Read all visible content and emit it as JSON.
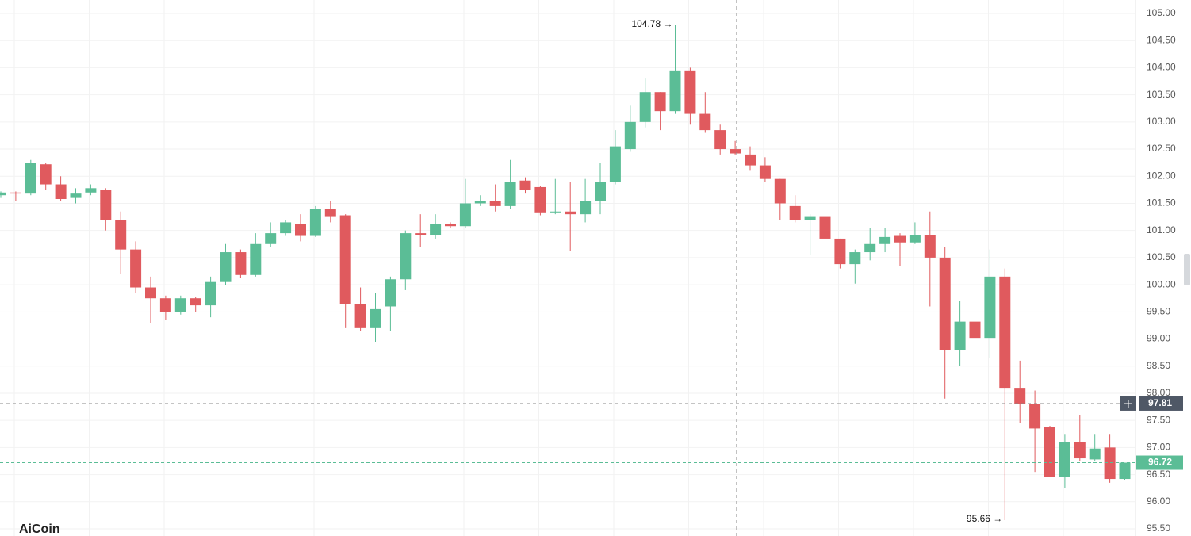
{
  "chart_data": {
    "type": "candlestick",
    "categories": [
      null,
      null,
      null,
      null,
      null,
      null,
      null,
      null,
      null,
      null,
      null,
      null,
      null,
      null,
      null,
      null,
      null,
      null,
      null,
      null,
      null,
      null,
      null,
      null,
      null,
      null,
      null,
      null,
      null,
      null,
      null,
      null,
      null,
      null,
      null,
      null,
      null,
      null,
      null,
      null,
      null,
      null,
      null,
      null,
      null,
      null,
      null,
      null,
      null,
      null,
      null,
      null,
      null,
      null,
      null,
      null,
      null,
      null,
      null,
      null,
      null,
      null,
      null,
      null,
      null,
      null,
      null,
      null,
      null,
      null,
      null,
      null,
      null,
      null,
      null,
      null
    ],
    "open": [
      101.65,
      101.7,
      101.68,
      102.22,
      101.85,
      101.6,
      101.7,
      101.75,
      101.2,
      100.65,
      99.95,
      99.75,
      99.5,
      99.75,
      99.62,
      100.05,
      100.6,
      100.18,
      100.75,
      100.95,
      101.12,
      100.9,
      101.4,
      101.28,
      99.65,
      99.2,
      99.6,
      100.1,
      100.95,
      100.92,
      101.12,
      101.08,
      101.5,
      101.55,
      101.45,
      101.92,
      101.8,
      101.32,
      101.35,
      101.3,
      101.55,
      101.9,
      102.5,
      103.0,
      103.55,
      103.2,
      103.95,
      103.15,
      102.85,
      102.5,
      102.4,
      102.2,
      101.95,
      101.45,
      101.2,
      101.25,
      100.85,
      100.38,
      100.6,
      100.75,
      100.9,
      100.78,
      100.92,
      100.5,
      98.8,
      99.32,
      99.02,
      100.15,
      98.1,
      97.8,
      97.38,
      96.45,
      97.1,
      96.78,
      97.0,
      96.42
    ],
    "high": [
      101.72,
      101.72,
      102.3,
      102.25,
      102.0,
      101.78,
      101.85,
      101.78,
      101.35,
      100.8,
      100.15,
      99.8,
      99.8,
      99.78,
      100.15,
      100.75,
      100.65,
      100.95,
      101.15,
      101.2,
      101.3,
      101.45,
      101.55,
      101.3,
      99.95,
      99.85,
      100.15,
      101.0,
      101.3,
      101.3,
      101.15,
      101.95,
      101.65,
      101.85,
      102.3,
      101.98,
      101.82,
      101.95,
      101.9,
      101.95,
      102.25,
      102.85,
      103.3,
      103.8,
      103.55,
      104.78,
      104.0,
      103.55,
      102.95,
      102.65,
      102.55,
      102.35,
      101.95,
      101.65,
      101.3,
      101.55,
      100.85,
      100.65,
      101.05,
      101.05,
      100.95,
      101.15,
      101.35,
      100.7,
      99.7,
      99.4,
      100.65,
      100.3,
      98.6,
      98.05,
      97.4,
      97.25,
      97.6,
      97.25,
      97.25,
      96.72
    ],
    "low": [
      101.6,
      101.55,
      101.65,
      101.75,
      101.55,
      101.5,
      101.65,
      101.0,
      100.2,
      99.85,
      99.3,
      99.35,
      99.45,
      99.5,
      99.4,
      100.0,
      100.12,
      100.15,
      100.7,
      100.9,
      100.8,
      100.88,
      101.15,
      99.2,
      99.15,
      98.95,
      99.15,
      99.9,
      100.7,
      100.85,
      101.05,
      101.05,
      101.45,
      101.35,
      101.4,
      101.68,
      101.28,
      101.3,
      100.62,
      101.15,
      101.3,
      101.85,
      102.45,
      102.9,
      102.85,
      103.15,
      102.95,
      102.8,
      102.4,
      102.4,
      102.1,
      101.9,
      101.2,
      101.15,
      100.55,
      100.8,
      100.3,
      100.02,
      100.45,
      100.6,
      100.35,
      100.75,
      99.6,
      97.9,
      98.5,
      98.9,
      98.65,
      95.66,
      97.45,
      96.55,
      96.45,
      96.25,
      96.75,
      96.75,
      96.35,
      96.4
    ],
    "close": [
      101.7,
      101.68,
      102.25,
      101.85,
      101.58,
      101.68,
      101.78,
      101.2,
      100.65,
      99.95,
      99.75,
      99.5,
      99.75,
      99.62,
      100.05,
      100.6,
      100.18,
      100.75,
      100.95,
      101.15,
      100.9,
      101.4,
      101.25,
      99.65,
      99.2,
      99.55,
      100.1,
      100.95,
      100.92,
      101.12,
      101.08,
      101.5,
      101.55,
      101.45,
      101.9,
      101.75,
      101.32,
      101.35,
      101.3,
      101.55,
      101.9,
      102.55,
      103.0,
      103.55,
      103.2,
      103.95,
      103.15,
      102.85,
      102.5,
      102.42,
      102.2,
      101.95,
      101.5,
      101.2,
      101.25,
      100.85,
      100.38,
      100.6,
      100.75,
      100.88,
      100.78,
      100.92,
      100.5,
      98.8,
      99.32,
      99.02,
      100.15,
      98.1,
      97.8,
      97.35,
      96.45,
      97.1,
      96.8,
      96.98,
      96.42,
      96.72
    ],
    "up_color": "#5bbd96",
    "down_color": "#e05a5e",
    "ylim": [
      95.5,
      105.0
    ],
    "yticks": [
      {
        "value": 95.5,
        "label": "95.50"
      },
      {
        "value": 96,
        "label": "96.00"
      },
      {
        "value": 96.5,
        "label": "96.50"
      },
      {
        "value": 97,
        "label": "97.00"
      },
      {
        "value": 97.5,
        "label": "97.50"
      },
      {
        "value": 98,
        "label": "98.00"
      },
      {
        "value": 98.5,
        "label": "98.50"
      },
      {
        "value": 99,
        "label": "99.00"
      },
      {
        "value": 99.5,
        "label": "99.50"
      },
      {
        "value": 100,
        "label": "100.00"
      },
      {
        "value": 100.5,
        "label": "100.50"
      },
      {
        "value": 101,
        "label": "101.00"
      },
      {
        "value": 101.5,
        "label": "101.50"
      },
      {
        "value": 102,
        "label": "102.00"
      },
      {
        "value": 102.5,
        "label": "102.50"
      },
      {
        "value": 103,
        "label": "103.00"
      },
      {
        "value": 103.5,
        "label": "103.50"
      },
      {
        "value": 104,
        "label": "104.00"
      },
      {
        "value": 104.5,
        "label": "104.50"
      },
      {
        "value": 105,
        "label": "105.00"
      }
    ],
    "grid": true,
    "annotations": [
      {
        "index": 45,
        "text": "104.78 →"
      },
      {
        "index": 67,
        "text": "95.66 →"
      }
    ],
    "crosshair_price": 97.81,
    "watermark": "AiCoin"
  }
}
